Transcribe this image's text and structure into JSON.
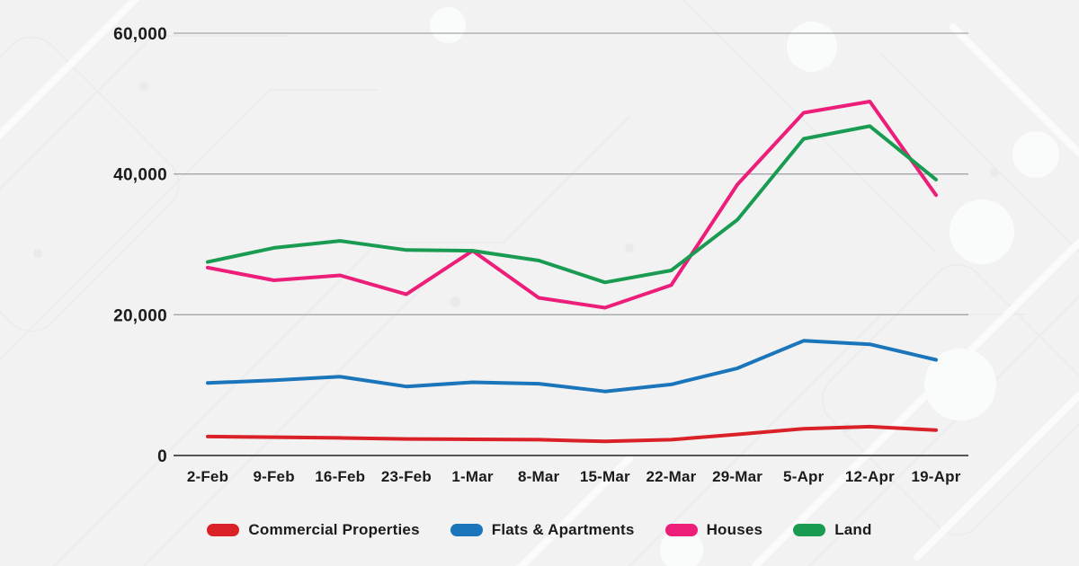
{
  "chart_data": {
    "type": "line",
    "title": "",
    "x": [
      "2-Feb",
      "9-Feb",
      "16-Feb",
      "23-Feb",
      "1-Mar",
      "8-Mar",
      "15-Mar",
      "22-Mar",
      "29-Mar",
      "5-Apr",
      "12-Apr",
      "19-Apr"
    ],
    "series": [
      {
        "name": "Commercial Properties",
        "color": "#da2128",
        "values": [
          2700,
          2600,
          2500,
          2350,
          2300,
          2250,
          2000,
          2250,
          3000,
          3800,
          4100,
          3600
        ]
      },
      {
        "name": "Flats & Apartments",
        "color": "#1b75bb",
        "values": [
          10300,
          10700,
          11200,
          9800,
          10400,
          10200,
          9100,
          10100,
          12400,
          16300,
          15800,
          13600
        ]
      },
      {
        "name": "Houses",
        "color": "#ec1e79",
        "values": [
          26700,
          24900,
          25600,
          22900,
          29100,
          22400,
          21000,
          24200,
          38500,
          48700,
          50300,
          37000
        ]
      },
      {
        "name": "Land",
        "color": "#199b51",
        "values": [
          27500,
          29500,
          30500,
          29200,
          29100,
          27700,
          24600,
          26300,
          33500,
          45000,
          46800,
          39200
        ]
      }
    ],
    "y_ticks": [
      {
        "value": 0,
        "label": "0"
      },
      {
        "value": 20000,
        "label": "20,000"
      },
      {
        "value": 40000,
        "label": "40,000"
      },
      {
        "value": 60000,
        "label": "60,000"
      }
    ],
    "ylim": [
      0,
      60000
    ],
    "grid": true,
    "legend_position": "bottom",
    "colors": {
      "axis_line": "#55565a",
      "grid_line": "#a5a6a9",
      "tick_text": "#1b1b1d",
      "background": "#f2f2f3"
    }
  }
}
